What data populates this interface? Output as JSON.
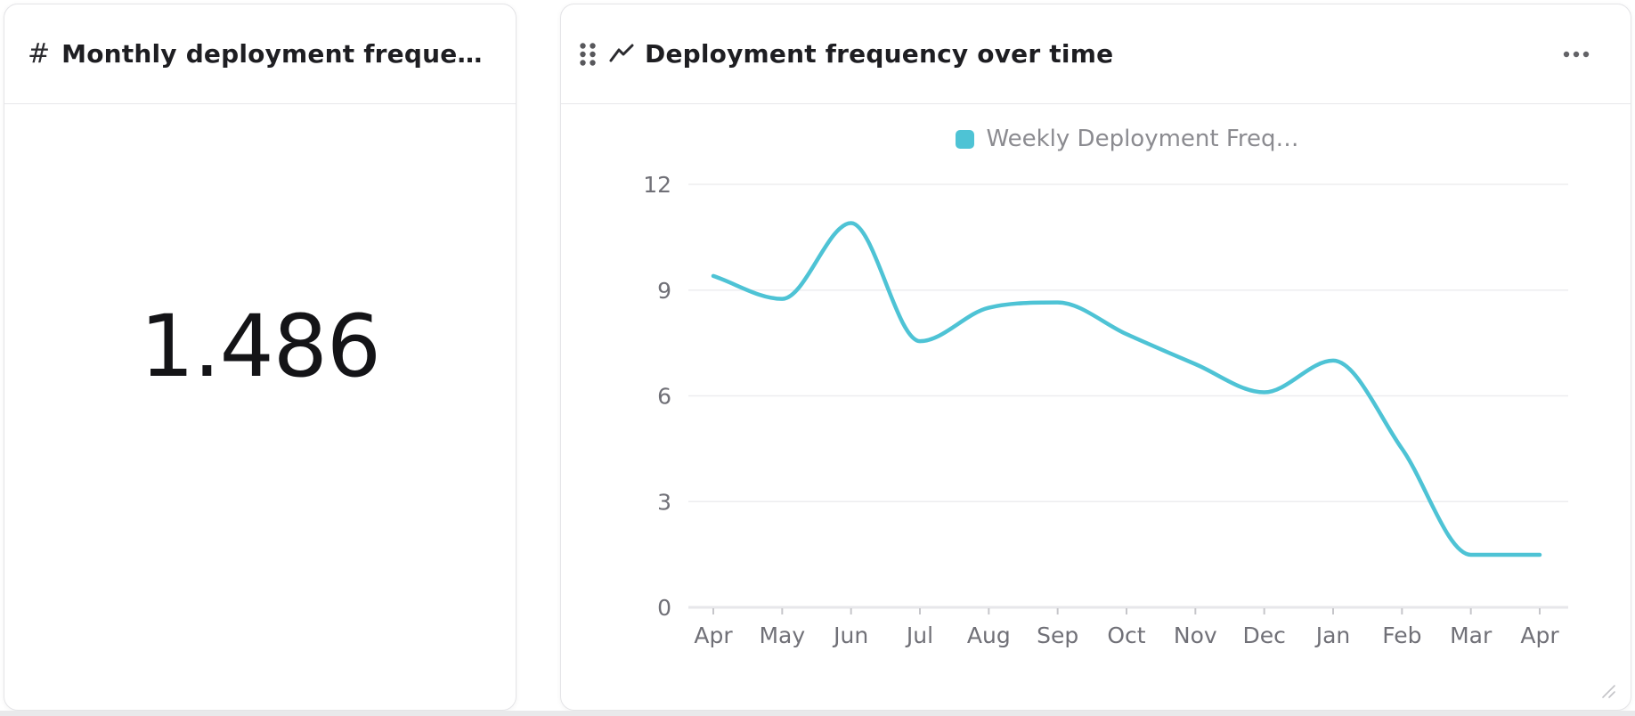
{
  "left_card": {
    "hash_icon": "#",
    "title": "Monthly deployment frequen…",
    "value": "1.486"
  },
  "right_card": {
    "title": "Deployment frequency over time"
  },
  "chart_data": {
    "type": "line",
    "title": "Deployment frequency over time",
    "categories": [
      "Apr",
      "May",
      "Jun",
      "Jul",
      "Aug",
      "Sep",
      "Oct",
      "Nov",
      "Dec",
      "Jan",
      "Feb",
      "Mar",
      "Apr"
    ],
    "series": [
      {
        "name": "Weekly Deployment Freq…",
        "color": "#4ec3d5",
        "values": [
          9.4,
          8.75,
          10.9,
          7.55,
          8.5,
          8.65,
          7.75,
          6.9,
          6.1,
          7.0,
          4.5,
          1.49,
          1.49
        ]
      }
    ],
    "xlabel": "",
    "ylabel": "",
    "ylim": [
      0,
      12
    ],
    "yticks": [
      0,
      3,
      6,
      9,
      12
    ],
    "grid": true,
    "smooth": true,
    "legend_position": "top"
  },
  "colors": {
    "accent": "#4ec3d5",
    "title_text": "#1e1e22",
    "axis_text": "#707077",
    "gridline": "#ededef",
    "legend_text": "#8b8b90"
  }
}
